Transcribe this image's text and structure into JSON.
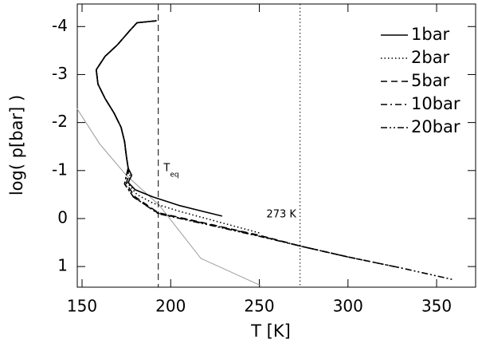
{
  "chart_data": {
    "type": "line",
    "xlabel": "T [K]",
    "ylabel": "log( p[bar] )",
    "xlim": [
      147.3,
      372
    ],
    "xticks": [
      150,
      200,
      250,
      300,
      350
    ],
    "ylim": [
      -4.47,
      1.43
    ],
    "yticks": [
      -4,
      -3,
      -2,
      -1,
      0,
      1
    ],
    "y_inverted": true,
    "legend": "top-right",
    "series": [
      {
        "name": "1bar",
        "color": "#000000",
        "dash": "solid",
        "x": [
          192,
          181,
          177,
          170,
          163,
          158,
          159,
          163,
          168,
          172,
          174,
          175,
          176,
          178,
          176,
          180,
          190,
          205,
          229
        ],
        "values": [
          -4.12,
          -4.08,
          -3.92,
          -3.62,
          -3.38,
          -3.1,
          -2.8,
          -2.5,
          -2.2,
          -1.9,
          -1.6,
          -1.3,
          -1.05,
          -0.9,
          -0.75,
          -0.6,
          -0.45,
          -0.27,
          -0.05
        ]
      },
      {
        "name": "2bar",
        "color": "#000000",
        "dash": "dotted",
        "x": [
          192,
          181,
          177,
          170,
          163,
          158,
          159,
          163,
          168,
          172,
          174,
          175,
          176,
          177,
          176,
          181,
          190,
          205,
          225,
          250
        ],
        "values": [
          -4.12,
          -4.08,
          -3.92,
          -3.62,
          -3.38,
          -3.1,
          -2.8,
          -2.5,
          -2.2,
          -1.9,
          -1.6,
          -1.3,
          -1.05,
          -0.9,
          -0.72,
          -0.5,
          -0.32,
          -0.15,
          0.05,
          0.3
        ]
      },
      {
        "name": "5bar",
        "color": "#000000",
        "dash": "dashed",
        "x": [
          192,
          181,
          177,
          170,
          163,
          158,
          159,
          163,
          168,
          172,
          174,
          175,
          176,
          176,
          175,
          180,
          193,
          220,
          250,
          274,
          300
        ],
        "values": [
          -4.12,
          -4.08,
          -3.92,
          -3.62,
          -3.38,
          -3.1,
          -2.8,
          -2.5,
          -2.2,
          -1.9,
          -1.6,
          -1.3,
          -1.05,
          -0.9,
          -0.72,
          -0.45,
          -0.12,
          0.1,
          0.35,
          0.58,
          0.8
        ]
      },
      {
        "name": "10bar",
        "color": "#000000",
        "dash": "dash-dot",
        "x": [
          192,
          181,
          177,
          170,
          163,
          158,
          159,
          163,
          168,
          172,
          174,
          175,
          176,
          175,
          174,
          179,
          193,
          220,
          250,
          274,
          300,
          330
        ],
        "values": [
          -4.12,
          -4.08,
          -3.92,
          -3.62,
          -3.38,
          -3.1,
          -2.8,
          -2.5,
          -2.2,
          -1.9,
          -1.6,
          -1.3,
          -1.05,
          -0.9,
          -0.72,
          -0.45,
          -0.11,
          0.11,
          0.36,
          0.58,
          0.8,
          1.03
        ]
      },
      {
        "name": "20bar",
        "color": "#000000",
        "dash": "dash-dot-dot",
        "x": [
          192,
          181,
          177,
          170,
          163,
          158,
          159,
          163,
          168,
          172,
          174,
          175,
          176,
          175,
          174,
          179,
          193,
          220,
          250,
          274,
          300,
          330,
          359
        ],
        "values": [
          -4.12,
          -4.08,
          -3.92,
          -3.62,
          -3.38,
          -3.1,
          -2.8,
          -2.5,
          -2.2,
          -1.9,
          -1.6,
          -1.3,
          -1.05,
          -0.9,
          -0.72,
          -0.45,
          -0.1,
          0.12,
          0.37,
          0.58,
          0.8,
          1.03,
          1.27
        ]
      }
    ],
    "reference_curve": {
      "color": "#999999",
      "x": [
        147,
        160,
        175,
        193.5,
        217,
        251
      ],
      "values": [
        -2.3,
        -1.55,
        -0.9,
        -0.28,
        0.83,
        1.4
      ]
    },
    "vlines": [
      {
        "x": 193,
        "dash": "dashed"
      },
      {
        "x": 273,
        "dash": "dotted"
      }
    ],
    "annotations": [
      {
        "text": "T",
        "sub": "eq",
        "x": 196,
        "y": -1.05
      },
      {
        "text": "273 K",
        "x": 254,
        "y": -0.08
      }
    ]
  }
}
